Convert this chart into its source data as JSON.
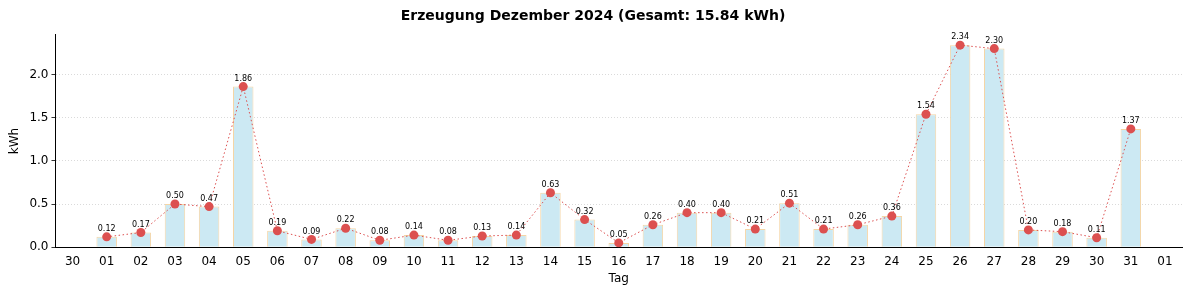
{
  "chart_data": {
    "type": "bar",
    "title": "Erzeugung Dezember 2024 (Gesamt: 15.84 kWh)",
    "xlabel": "Tag",
    "ylabel": "kWh",
    "categories": [
      "30",
      "01",
      "02",
      "03",
      "04",
      "05",
      "06",
      "07",
      "08",
      "09",
      "10",
      "11",
      "12",
      "13",
      "14",
      "15",
      "16",
      "17",
      "18",
      "19",
      "20",
      "21",
      "22",
      "23",
      "24",
      "25",
      "26",
      "27",
      "28",
      "29",
      "30",
      "31",
      "01"
    ],
    "series": [
      {
        "color": "#cce9f3",
        "values": [
          null,
          0.12,
          0.17,
          0.5,
          0.47,
          1.86,
          0.19,
          0.09,
          0.22,
          0.08,
          0.14,
          0.08,
          0.13,
          0.14,
          0.63,
          0.32,
          0.05,
          0.26,
          0.4,
          0.4,
          0.21,
          0.51,
          0.21,
          0.26,
          0.36,
          1.54,
          2.34,
          2.3,
          0.2,
          0.18,
          0.11,
          1.37,
          null
        ]
      },
      {
        "type": "line",
        "color": "#dc5050",
        "marker": "circle",
        "line_style": "dotted",
        "value_labels": [
          null,
          "0.12",
          "0.17",
          "0.50",
          "0.47",
          "1.86",
          "0.19",
          "0.09",
          "0.22",
          "0.08",
          "0.14",
          "0.08",
          "0.13",
          "0.14",
          "0.63",
          "0.32",
          "0.05",
          "0.26",
          "0.40",
          "0.40",
          "0.21",
          "0.51",
          "0.21",
          "0.26",
          "0.36",
          "1.54",
          "2.34",
          "2.30",
          "0.20",
          "0.18",
          "0.11",
          "1.37",
          null
        ],
        "values": [
          null,
          0.12,
          0.17,
          0.5,
          0.47,
          1.86,
          0.19,
          0.09,
          0.22,
          0.08,
          0.14,
          0.08,
          0.13,
          0.14,
          0.63,
          0.32,
          0.05,
          0.26,
          0.4,
          0.4,
          0.21,
          0.51,
          0.21,
          0.26,
          0.36,
          1.54,
          2.34,
          2.3,
          0.2,
          0.18,
          0.11,
          1.37,
          null
        ]
      }
    ],
    "ylim": [
      0,
      2.46
    ],
    "yticks": [
      {
        "value": 0,
        "label": "0.0"
      },
      {
        "value": 0.5,
        "label": "0.5"
      },
      {
        "value": 1,
        "label": "1.0"
      },
      {
        "value": 1.5,
        "label": "1.5"
      },
      {
        "value": 2,
        "label": "2.0"
      }
    ],
    "grid": "y",
    "legend": false
  }
}
